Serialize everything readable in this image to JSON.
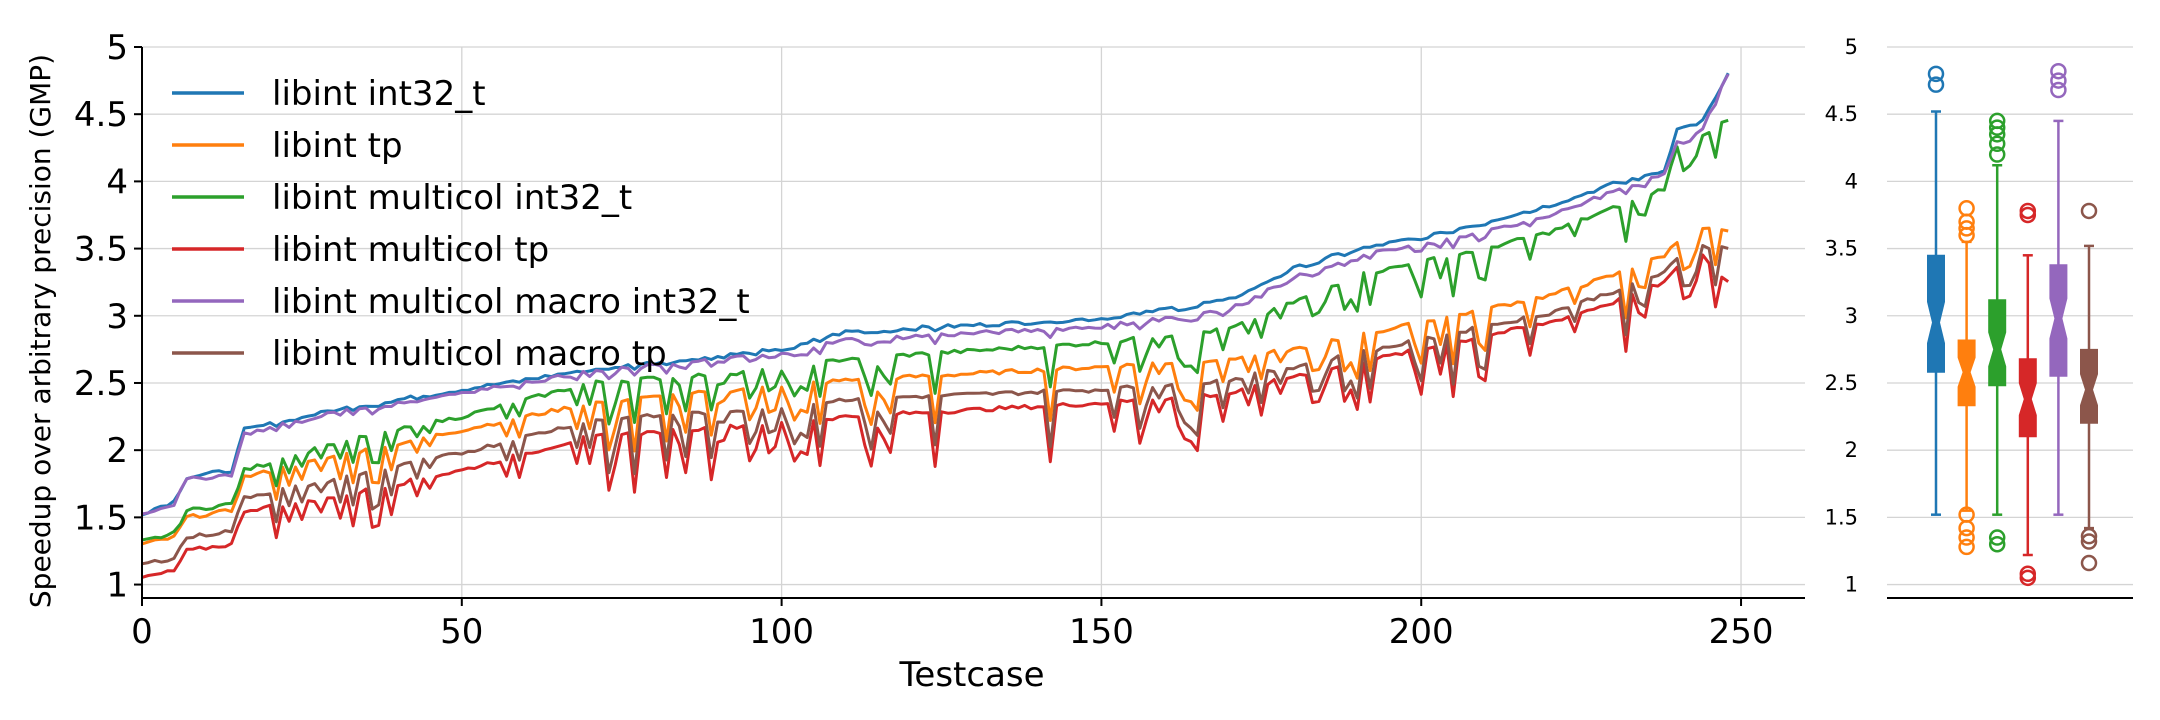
{
  "chart_data": [
    {
      "type": "line",
      "xlabel": "Testcase",
      "ylabel": "Speedup over arbitrary precision (GMP)",
      "xlim": [
        0,
        260
      ],
      "ylim": [
        0.9,
        5.0
      ],
      "xticks": [
        0,
        50,
        100,
        150,
        200,
        250
      ],
      "yticks": [
        1.0,
        1.5,
        2.0,
        2.5,
        3.0,
        3.5,
        4.0,
        4.5,
        5.0
      ],
      "grid": true,
      "legend_position": "top-left",
      "series": [
        {
          "name": "libint int32_t",
          "color": "#1f77b4"
        },
        {
          "name": "libint tp",
          "color": "#ff7f0e"
        },
        {
          "name": "libint multicol int32_t",
          "color": "#2ca02c"
        },
        {
          "name": "libint multicol tp",
          "color": "#d62728"
        },
        {
          "name": "libint multicol macro int32_t",
          "color": "#9467bd"
        },
        {
          "name": "libint multicol macro tp",
          "color": "#8c564b"
        }
      ],
      "curve_points": {
        "x": [
          0,
          5,
          7,
          14,
          16,
          30,
          50,
          70,
          100,
          110,
          150,
          170,
          180,
          190,
          200,
          210,
          220,
          230,
          238,
          240,
          244,
          248
        ],
        "libint int32_t": [
          1.53,
          1.62,
          1.8,
          1.85,
          2.15,
          2.3,
          2.45,
          2.6,
          2.75,
          2.88,
          2.98,
          3.12,
          3.35,
          3.5,
          3.58,
          3.7,
          3.82,
          3.98,
          4.08,
          4.4,
          4.45,
          4.8
        ],
        "libint tp": [
          1.3,
          1.35,
          1.5,
          1.55,
          1.8,
          1.95,
          2.15,
          2.35,
          2.48,
          2.52,
          2.62,
          2.68,
          2.75,
          2.85,
          2.95,
          3.05,
          3.15,
          3.3,
          3.45,
          3.55,
          3.65,
          3.62
        ],
        "libint multicol int32_t": [
          1.32,
          1.38,
          1.55,
          1.6,
          1.85,
          2.05,
          2.25,
          2.5,
          2.6,
          2.68,
          2.8,
          2.9,
          3.1,
          3.3,
          3.4,
          3.5,
          3.62,
          3.8,
          3.95,
          4.25,
          4.35,
          4.45
        ],
        "libint multicol tp": [
          1.05,
          1.1,
          1.25,
          1.3,
          1.55,
          1.65,
          1.85,
          2.1,
          2.2,
          2.25,
          2.35,
          2.42,
          2.55,
          2.65,
          2.75,
          2.85,
          2.95,
          3.1,
          3.25,
          3.35,
          3.45,
          3.25
        ],
        "libint multicol macro int32_t": [
          1.53,
          1.6,
          1.78,
          1.82,
          2.12,
          2.28,
          2.43,
          2.58,
          2.72,
          2.82,
          2.92,
          3.05,
          3.28,
          3.45,
          3.52,
          3.62,
          3.75,
          3.92,
          4.05,
          4.3,
          4.4,
          4.8
        ],
        "libint multicol macro tp": [
          1.15,
          1.2,
          1.35,
          1.4,
          1.65,
          1.78,
          1.98,
          2.22,
          2.32,
          2.38,
          2.45,
          2.52,
          2.62,
          2.72,
          2.82,
          2.92,
          3.02,
          3.18,
          3.32,
          3.42,
          3.52,
          3.5
        ]
      }
    },
    {
      "type": "box",
      "ylim": [
        0.9,
        5.0
      ],
      "yticks": [
        1.0,
        1.5,
        2.0,
        2.5,
        3.0,
        3.5,
        4.0,
        4.5,
        5.0
      ],
      "boxes": [
        {
          "color": "#1f77b4",
          "whisker_low": 1.52,
          "q1": 2.58,
          "median": 2.95,
          "q3": 3.45,
          "whisker_high": 4.52,
          "outliers": [
            4.72,
            4.8
          ]
        },
        {
          "color": "#ff7f0e",
          "whisker_low": 1.55,
          "q1": 2.33,
          "median": 2.58,
          "q3": 2.82,
          "whisker_high": 3.55,
          "outliers": [
            1.28,
            1.35,
            1.42,
            1.52,
            3.6,
            3.65,
            3.7,
            3.8
          ]
        },
        {
          "color": "#2ca02c",
          "whisker_low": 1.52,
          "q1": 2.48,
          "median": 2.75,
          "q3": 3.12,
          "whisker_high": 4.12,
          "outliers": [
            1.3,
            1.35,
            4.2,
            4.28,
            4.35,
            4.4,
            4.45
          ]
        },
        {
          "color": "#d62728",
          "whisker_low": 1.22,
          "q1": 2.1,
          "median": 2.38,
          "q3": 2.68,
          "whisker_high": 3.45,
          "outliers": [
            1.05,
            1.08,
            3.75,
            3.78
          ]
        },
        {
          "color": "#9467bd",
          "whisker_low": 1.52,
          "q1": 2.55,
          "median": 2.98,
          "q3": 3.38,
          "whisker_high": 4.45,
          "outliers": [
            4.68,
            4.75,
            4.82
          ]
        },
        {
          "color": "#8c564b",
          "whisker_low": 1.42,
          "q1": 2.2,
          "median": 2.45,
          "q3": 2.75,
          "whisker_high": 3.52,
          "outliers": [
            1.16,
            1.32,
            1.36,
            3.78
          ]
        }
      ]
    }
  ]
}
